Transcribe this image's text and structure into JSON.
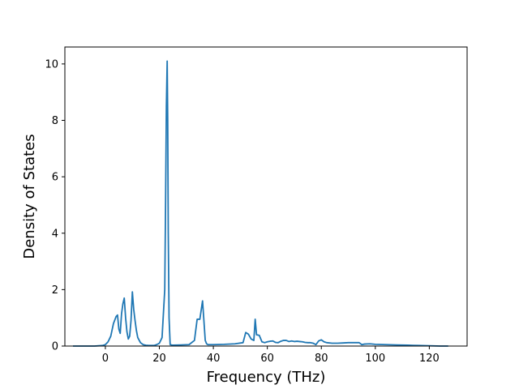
{
  "chart_data": {
    "type": "line",
    "title": "",
    "xlabel": "Frequency (THz)",
    "ylabel": "Density of States",
    "xlim": [
      -15,
      134
    ],
    "ylim": [
      0,
      10.6
    ],
    "xticks": [
      0,
      20,
      40,
      60,
      80,
      100,
      120
    ],
    "yticks": [
      0,
      2,
      4,
      6,
      8,
      10
    ],
    "grid": false,
    "legend": "none",
    "color": "#1f77b4",
    "series": [
      {
        "x": [
          -12,
          -8,
          -4,
          -1,
          0,
          1,
          2,
          3,
          4,
          4.5,
          5,
          5.5,
          6,
          6.5,
          7,
          7.5,
          8,
          8.5,
          9,
          9.5,
          10,
          10.5,
          11,
          11.5,
          12,
          13,
          14,
          15,
          16,
          17,
          18,
          19,
          20,
          21,
          22,
          22.3,
          22.6,
          22.9,
          23.1,
          23.3,
          23.6,
          24,
          25,
          28,
          31,
          33,
          34,
          35,
          36,
          36.5,
          37,
          37.5,
          38,
          40,
          44,
          48,
          51,
          52,
          53,
          54,
          55,
          55.5,
          56,
          57,
          58,
          59,
          60,
          61,
          62,
          63,
          64,
          65,
          66,
          67,
          68,
          69,
          70,
          71,
          72,
          73,
          74,
          75,
          76,
          77,
          78,
          79,
          80,
          81,
          82,
          84,
          86,
          88,
          90,
          92,
          94,
          95,
          96,
          98,
          100,
          104,
          108,
          112,
          116,
          120,
          124,
          127
        ],
        "y": [
          0,
          0,
          0,
          0.02,
          0.05,
          0.15,
          0.35,
          0.8,
          1.05,
          1.1,
          0.6,
          0.45,
          1.15,
          1.5,
          1.7,
          1.0,
          0.5,
          0.25,
          0.35,
          0.9,
          1.92,
          1.3,
          0.9,
          0.55,
          0.3,
          0.12,
          0.05,
          0.03,
          0.02,
          0.02,
          0.02,
          0.05,
          0.1,
          0.3,
          2.0,
          5.0,
          8.5,
          10.1,
          8.0,
          4.0,
          1.0,
          0.05,
          0.03,
          0.04,
          0.05,
          0.2,
          0.95,
          0.95,
          1.6,
          0.9,
          0.2,
          0.08,
          0.05,
          0.05,
          0.06,
          0.08,
          0.12,
          0.48,
          0.42,
          0.25,
          0.2,
          0.95,
          0.4,
          0.38,
          0.15,
          0.12,
          0.15,
          0.17,
          0.18,
          0.13,
          0.12,
          0.17,
          0.2,
          0.2,
          0.16,
          0.18,
          0.16,
          0.17,
          0.16,
          0.15,
          0.13,
          0.12,
          0.12,
          0.1,
          0.05,
          0.18,
          0.22,
          0.15,
          0.12,
          0.1,
          0.1,
          0.11,
          0.12,
          0.12,
          0.12,
          0.05,
          0.07,
          0.08,
          0.06,
          0.05,
          0.04,
          0.03,
          0.02,
          0.01,
          0.0,
          0.0
        ]
      }
    ]
  }
}
